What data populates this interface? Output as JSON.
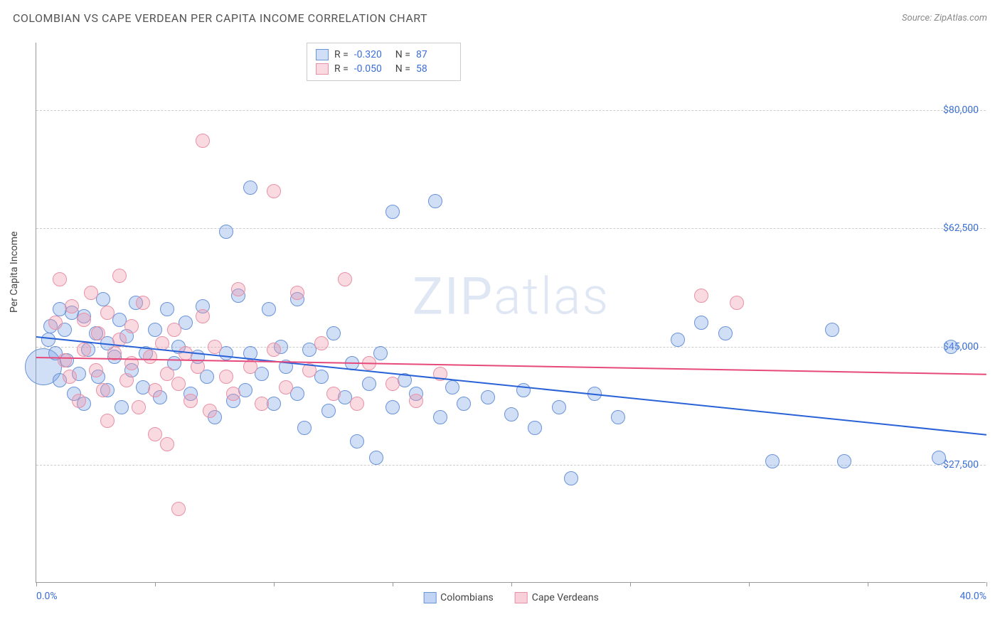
{
  "title": "COLOMBIAN VS CAPE VERDEAN PER CAPITA INCOME CORRELATION CHART",
  "source_label": "Source: ZipAtlas.com",
  "y_axis_title": "Per Capita Income",
  "watermark": "ZIPatlas",
  "chart": {
    "type": "scatter",
    "xlim": [
      0,
      40
    ],
    "ylim": [
      10000,
      90000
    ],
    "x_ticks": [
      0,
      5,
      10,
      15,
      20,
      25,
      30,
      35,
      40
    ],
    "x_tick_labels_visible": {
      "0": "0.0%",
      "40": "40.0%"
    },
    "y_gridlines": [
      27500,
      45000,
      62500,
      80000
    ],
    "y_tick_labels": [
      "$27,500",
      "$45,000",
      "$62,500",
      "$80,000"
    ],
    "background_color": "#ffffff",
    "grid_color": "#cccccc",
    "axis_color": "#999999",
    "label_color": "#3b6fd6",
    "series": [
      {
        "name": "Colombians",
        "fill": "rgba(120,160,230,0.35)",
        "stroke": "#6a93d8",
        "trend_color": "#2962d6",
        "R": "-0.320",
        "N": "87",
        "trend": {
          "x1": 0,
          "y1": 46500,
          "x2": 40,
          "y2": 32000
        },
        "points": [
          [
            0.3,
            42000,
            26
          ],
          [
            0.5,
            46000,
            10
          ],
          [
            0.6,
            48000,
            10
          ],
          [
            0.8,
            44000,
            10
          ],
          [
            1.0,
            50500,
            10
          ],
          [
            1.0,
            40000,
            10
          ],
          [
            1.2,
            47500,
            10
          ],
          [
            1.3,
            43000,
            10
          ],
          [
            1.5,
            50000,
            10
          ],
          [
            1.6,
            38000,
            10
          ],
          [
            1.8,
            41000,
            10
          ],
          [
            2.0,
            49500,
            10
          ],
          [
            2.0,
            36500,
            10
          ],
          [
            2.2,
            44500,
            10
          ],
          [
            2.5,
            47000,
            10
          ],
          [
            2.6,
            40500,
            10
          ],
          [
            2.8,
            52000,
            10
          ],
          [
            3.0,
            38500,
            10
          ],
          [
            3.0,
            45500,
            10
          ],
          [
            3.3,
            43500,
            10
          ],
          [
            3.5,
            49000,
            10
          ],
          [
            3.6,
            36000,
            10
          ],
          [
            3.8,
            46500,
            10
          ],
          [
            4.0,
            41500,
            10
          ],
          [
            4.2,
            51500,
            10
          ],
          [
            4.5,
            39000,
            10
          ],
          [
            4.6,
            44000,
            10
          ],
          [
            5.0,
            47500,
            10
          ],
          [
            5.2,
            37500,
            10
          ],
          [
            5.5,
            50500,
            10
          ],
          [
            5.8,
            42500,
            10
          ],
          [
            6.0,
            45000,
            10
          ],
          [
            6.3,
            48500,
            10
          ],
          [
            6.5,
            38000,
            10
          ],
          [
            6.8,
            43500,
            10
          ],
          [
            7.0,
            51000,
            10
          ],
          [
            7.2,
            40500,
            10
          ],
          [
            7.5,
            34500,
            10
          ],
          [
            8.0,
            44000,
            10
          ],
          [
            8.0,
            62000,
            10
          ],
          [
            8.3,
            37000,
            10
          ],
          [
            8.5,
            52500,
            10
          ],
          [
            8.8,
            38500,
            10
          ],
          [
            9.0,
            44000,
            10
          ],
          [
            9.0,
            68500,
            10
          ],
          [
            9.5,
            41000,
            10
          ],
          [
            9.8,
            50500,
            10
          ],
          [
            10.0,
            36500,
            10
          ],
          [
            10.3,
            45000,
            10
          ],
          [
            10.5,
            42000,
            10
          ],
          [
            11.0,
            38000,
            10
          ],
          [
            11.0,
            52000,
            10
          ],
          [
            11.3,
            33000,
            10
          ],
          [
            11.5,
            44500,
            10
          ],
          [
            12.0,
            40500,
            10
          ],
          [
            12.3,
            35500,
            10
          ],
          [
            12.5,
            47000,
            10
          ],
          [
            13.0,
            37500,
            10
          ],
          [
            13.3,
            42500,
            10
          ],
          [
            13.5,
            31000,
            10
          ],
          [
            14.0,
            39500,
            10
          ],
          [
            14.3,
            28500,
            10
          ],
          [
            14.5,
            44000,
            10
          ],
          [
            15.0,
            65000,
            10
          ],
          [
            15.0,
            36000,
            10
          ],
          [
            15.5,
            40000,
            10
          ],
          [
            16.0,
            38000,
            10
          ],
          [
            16.8,
            66500,
            10
          ],
          [
            17.0,
            34500,
            10
          ],
          [
            17.5,
            39000,
            10
          ],
          [
            18.0,
            36500,
            10
          ],
          [
            19.0,
            37500,
            10
          ],
          [
            20.0,
            35000,
            10
          ],
          [
            20.5,
            38500,
            10
          ],
          [
            21.0,
            33000,
            10
          ],
          [
            22.0,
            36000,
            10
          ],
          [
            22.5,
            25500,
            10
          ],
          [
            23.5,
            38000,
            10
          ],
          [
            24.5,
            34500,
            10
          ],
          [
            27.0,
            46000,
            10
          ],
          [
            28.0,
            48500,
            10
          ],
          [
            29.0,
            47000,
            10
          ],
          [
            31.0,
            28000,
            10
          ],
          [
            33.5,
            47500,
            10
          ],
          [
            34.0,
            28000,
            10
          ],
          [
            38.0,
            28500,
            10
          ],
          [
            38.5,
            45000,
            10
          ]
        ]
      },
      {
        "name": "Cape Verdeans",
        "fill": "rgba(240,150,170,0.35)",
        "stroke": "#e891a6",
        "trend_color": "#e74a7a",
        "R": "-0.050",
        "N": "58",
        "trend": {
          "x1": 0,
          "y1": 43500,
          "x2": 40,
          "y2": 41000
        },
        "points": [
          [
            0.8,
            48500,
            10
          ],
          [
            1.0,
            55000,
            10
          ],
          [
            1.2,
            43000,
            10
          ],
          [
            1.4,
            40500,
            10
          ],
          [
            1.5,
            51000,
            10
          ],
          [
            1.8,
            37000,
            10
          ],
          [
            2.0,
            44500,
            10
          ],
          [
            2.0,
            49000,
            10
          ],
          [
            2.3,
            53000,
            10
          ],
          [
            2.5,
            41500,
            10
          ],
          [
            2.6,
            47000,
            10
          ],
          [
            2.8,
            38500,
            10
          ],
          [
            3.0,
            50000,
            10
          ],
          [
            3.0,
            34000,
            10
          ],
          [
            3.3,
            44000,
            10
          ],
          [
            3.5,
            46000,
            10
          ],
          [
            3.5,
            55500,
            10
          ],
          [
            3.8,
            40000,
            10
          ],
          [
            4.0,
            42500,
            10
          ],
          [
            4.0,
            48000,
            10
          ],
          [
            4.3,
            36000,
            10
          ],
          [
            4.5,
            51500,
            10
          ],
          [
            4.8,
            43500,
            10
          ],
          [
            5.0,
            38500,
            10
          ],
          [
            5.0,
            32000,
            10
          ],
          [
            5.3,
            45500,
            10
          ],
          [
            5.5,
            41000,
            10
          ],
          [
            5.5,
            30500,
            10
          ],
          [
            5.8,
            47500,
            10
          ],
          [
            6.0,
            39500,
            10
          ],
          [
            6.0,
            21000,
            10
          ],
          [
            6.3,
            44000,
            10
          ],
          [
            6.5,
            37000,
            10
          ],
          [
            6.8,
            42000,
            10
          ],
          [
            7.0,
            49500,
            10
          ],
          [
            7.0,
            75500,
            10
          ],
          [
            7.3,
            35500,
            10
          ],
          [
            7.5,
            45000,
            10
          ],
          [
            8.0,
            40500,
            10
          ],
          [
            8.3,
            38000,
            10
          ],
          [
            8.5,
            53500,
            10
          ],
          [
            9.0,
            42000,
            10
          ],
          [
            9.5,
            36500,
            10
          ],
          [
            10.0,
            44500,
            10
          ],
          [
            10.0,
            68000,
            10
          ],
          [
            10.5,
            39000,
            10
          ],
          [
            11.0,
            53000,
            10
          ],
          [
            11.5,
            41500,
            10
          ],
          [
            12.0,
            45500,
            10
          ],
          [
            12.5,
            38000,
            10
          ],
          [
            13.0,
            55000,
            10
          ],
          [
            13.5,
            36500,
            10
          ],
          [
            14.0,
            42500,
            10
          ],
          [
            15.0,
            39500,
            10
          ],
          [
            16.0,
            37000,
            10
          ],
          [
            17.0,
            41000,
            10
          ],
          [
            28.0,
            52500,
            10
          ],
          [
            29.5,
            51500,
            10
          ]
        ]
      }
    ],
    "stats_box": {
      "label_R": "R  =",
      "label_N": "N  ="
    },
    "legend_bottom": [
      {
        "label": "Colombians",
        "fill": "rgba(120,160,230,0.45)",
        "stroke": "#6a93d8"
      },
      {
        "label": "Cape Verdeans",
        "fill": "rgba(240,150,170,0.45)",
        "stroke": "#e891a6"
      }
    ]
  }
}
